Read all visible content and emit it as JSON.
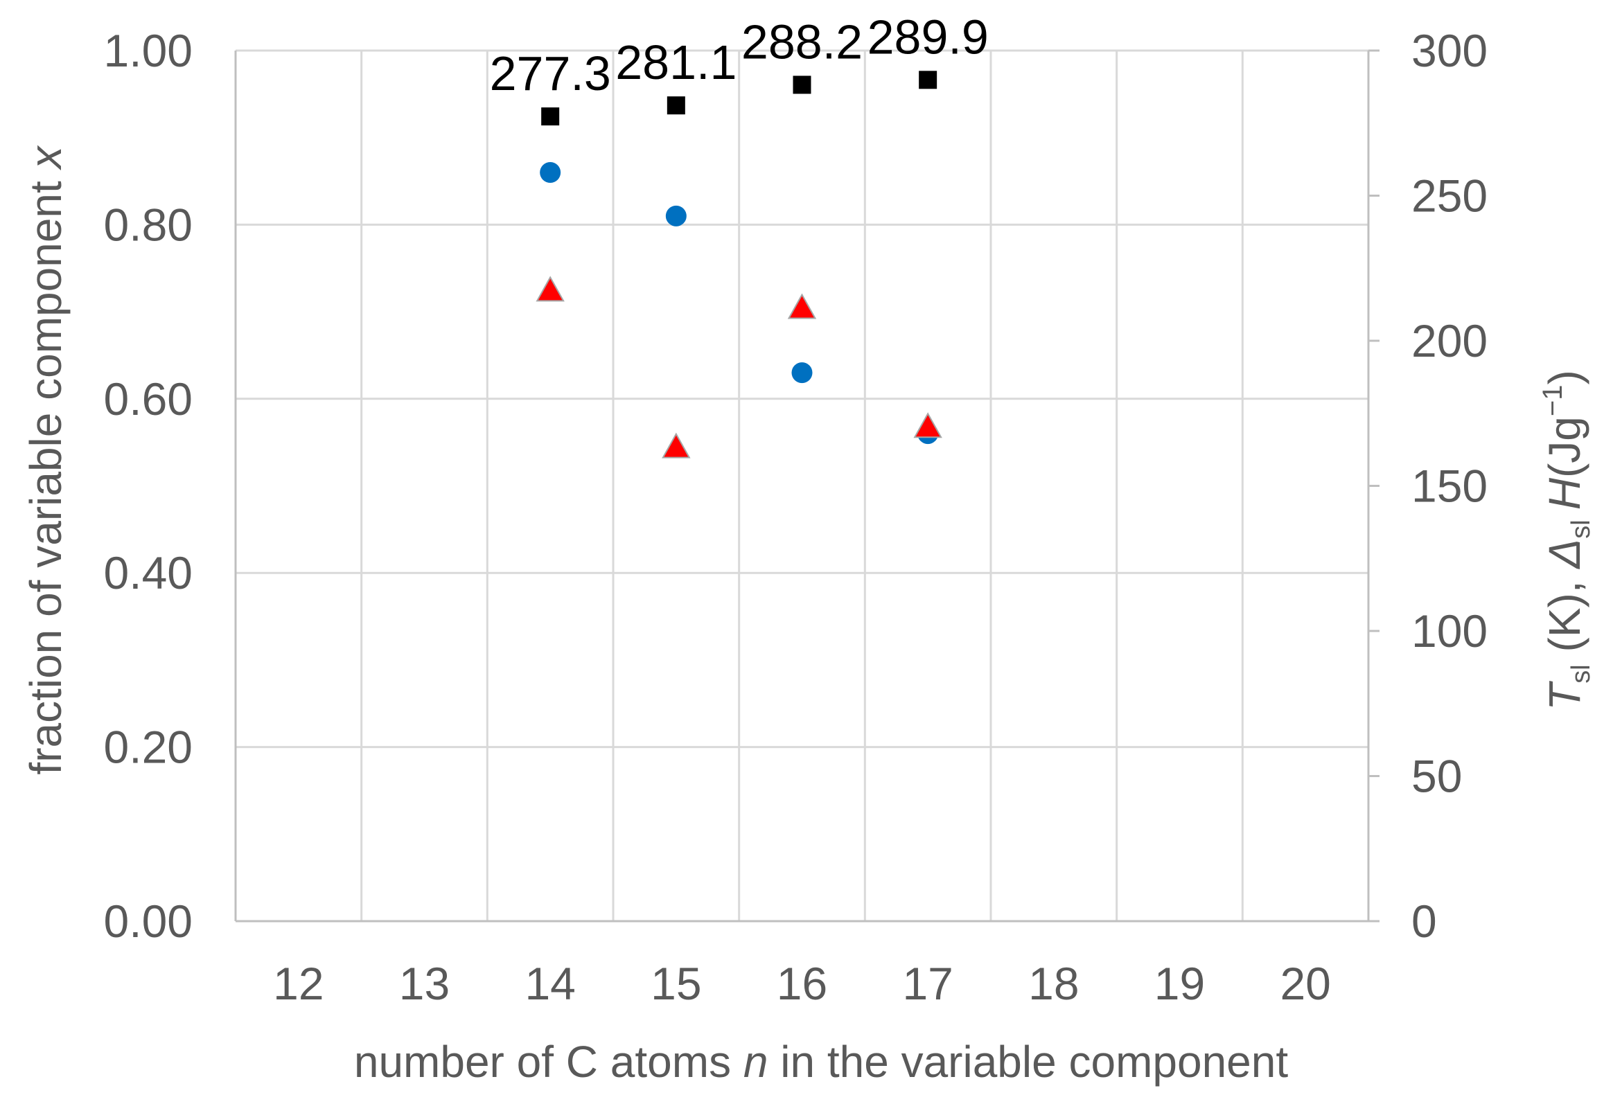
{
  "chart_data": {
    "type": "scatter",
    "title": "",
    "xlabel": {
      "prefix": "number of C atoms ",
      "var": "n",
      "suffix": " in the variable component"
    },
    "ylabel_left": {
      "prefix": "fraction of variable component ",
      "var": "x"
    },
    "ylabel_right": {
      "T": "T",
      "sl": "sl",
      "k": " (K), ",
      "delta": "Δ",
      "H": "H",
      "unit_open": "(Jg",
      "exp": "−1",
      "unit_close": ")"
    },
    "xlim": [
      11.5,
      20.5
    ],
    "ylim_left": [
      0,
      1
    ],
    "ylim_right": [
      0,
      300
    ],
    "x_ticks": [
      "12",
      "13",
      "14",
      "15",
      "16",
      "17",
      "18",
      "19",
      "20"
    ],
    "y_left_ticks": [
      "0.00",
      "0.20",
      "0.40",
      "0.60",
      "0.80",
      "1.00"
    ],
    "y_right_ticks": [
      "0",
      "50",
      "100",
      "150",
      "200",
      "250",
      "300"
    ],
    "grid": true,
    "series": [
      {
        "marker": "circle",
        "axis": "left",
        "color": "#0070c0",
        "points": [
          {
            "x": 14,
            "y": 0.86
          },
          {
            "x": 15,
            "y": 0.81
          },
          {
            "x": 16,
            "y": 0.63
          },
          {
            "x": 17,
            "y": 0.56
          }
        ]
      },
      {
        "marker": "square",
        "axis": "right",
        "color": "#000000",
        "points": [
          {
            "x": 14,
            "y": 277.3,
            "label": "277.3"
          },
          {
            "x": 15,
            "y": 281.1,
            "label": "281.1"
          },
          {
            "x": 16,
            "y": 288.2,
            "label": "288.2"
          },
          {
            "x": 17,
            "y": 289.9,
            "label": "289.9"
          }
        ]
      },
      {
        "marker": "triangle",
        "axis": "right",
        "color": "#ff0000",
        "points": [
          {
            "x": 14,
            "y": 217
          },
          {
            "x": 15,
            "y": 163
          },
          {
            "x": 16,
            "y": 211
          },
          {
            "x": 17,
            "y": 170
          }
        ]
      }
    ]
  }
}
